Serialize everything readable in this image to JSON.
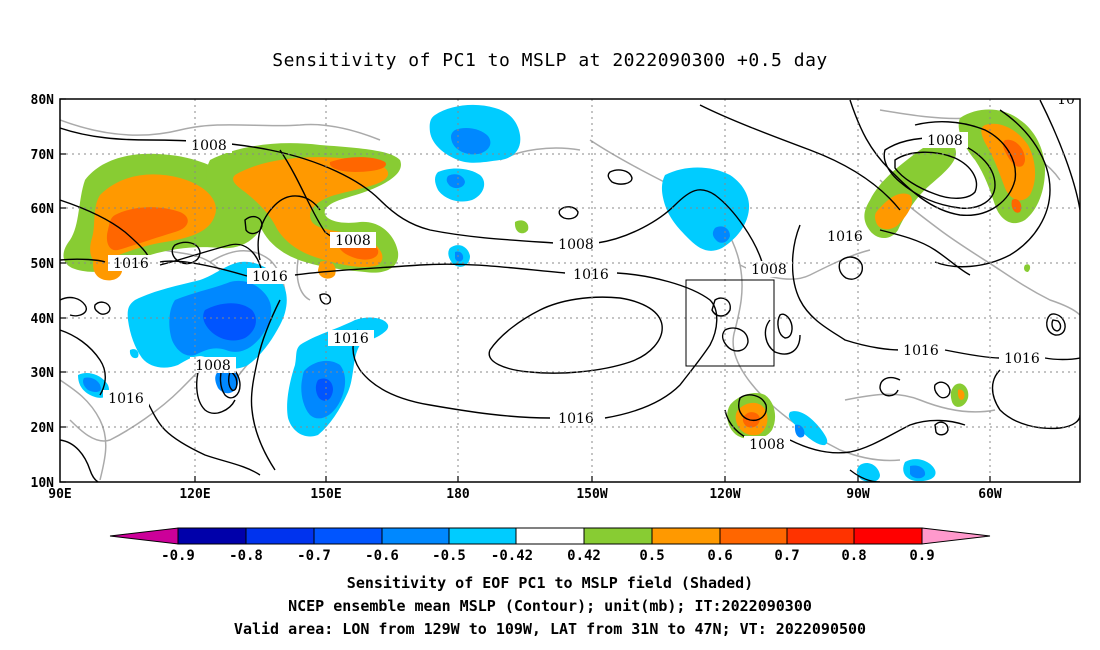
{
  "title": "Sensitivity of PC1 to MSLP at 2022090300 +0.5 day",
  "lat_labels": [
    "80N",
    "70N",
    "60N",
    "50N",
    "40N",
    "30N",
    "20N",
    "10N"
  ],
  "lon_labels": [
    "90E",
    "120E",
    "150E",
    "180",
    "150W",
    "120W",
    "90W",
    "60W"
  ],
  "contour_labels": [
    "1008",
    "1008",
    "1008",
    "1008",
    "1008",
    "1008",
    "1016",
    "1016",
    "1016",
    "1016",
    "1016",
    "1016",
    "1016",
    "1016",
    "10"
  ],
  "colorbar": {
    "ticks": [
      "-0.9",
      "-0.8",
      "-0.7",
      "-0.6",
      "-0.5",
      "-0.42",
      "0.42",
      "0.5",
      "0.6",
      "0.7",
      "0.8",
      "0.9"
    ],
    "colors": [
      "#0000aa",
      "#0033ee",
      "#0055ff",
      "#0088ff",
      "#00ccff",
      "#ffffff",
      "#88cc33",
      "#ff9900",
      "#ff6600",
      "#ff3300",
      "#ff0000"
    ],
    "under_color": "#cc0099",
    "over_color": "#ff99cc"
  },
  "captions": [
    "Sensitivity of EOF PC1 to MSLP field (Shaded)",
    "NCEP ensemble mean MSLP (Contour); unit(mb); IT:2022090300",
    "Valid area: LON from 129W to 109W, LAT from 31N to 47N; VT: 2022090500"
  ],
  "colors": {
    "positive_green": "#88cc33",
    "positive_orange": "#ff9900",
    "positive_deep_orange": "#ff6600",
    "negative_light_blue": "#00ccff",
    "negative_blue": "#0088ff",
    "coastline": "#aaaaaa"
  }
}
